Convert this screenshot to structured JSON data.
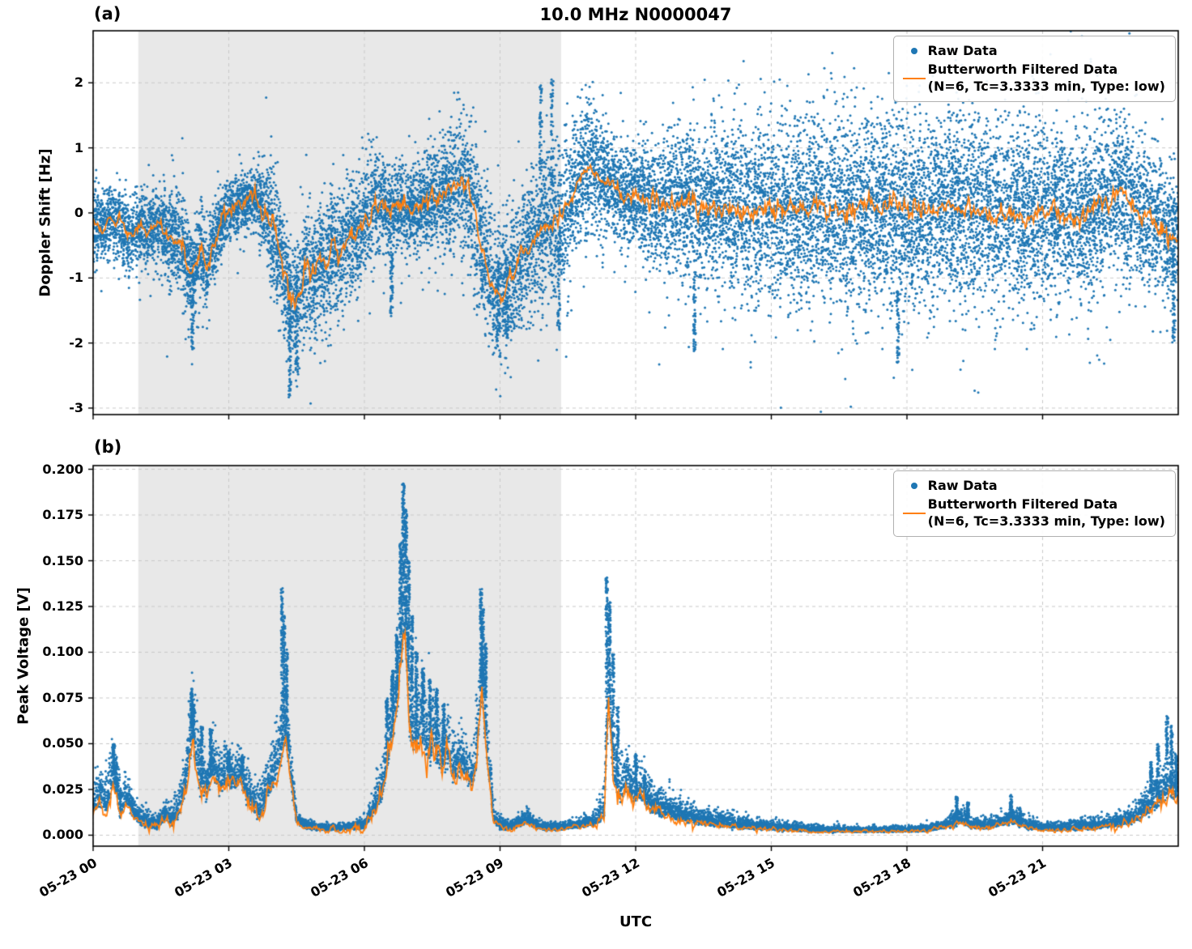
{
  "figure": {
    "title": "10.0 MHz N0000047",
    "xlabel": "UTC",
    "colors": {
      "raw": "#1f77b4",
      "filtered": "#ff7f0e",
      "shade": "#e8e8e8",
      "grid": "#c9c9c9",
      "spine": "#000000"
    }
  },
  "legend": {
    "raw_label": "Raw Data",
    "filtered_label_line1": "Butterworth Filtered Data",
    "filtered_label_line2": "(N=6, Tc=3.3333 min, Type: low)"
  },
  "chart_data": [
    {
      "type": "scatter",
      "panel_label": "(a)",
      "ylabel": "Doppler Shift [Hz]",
      "ylim": [
        -3.1,
        2.8
      ],
      "ytick_values": [
        -3,
        -2,
        -1,
        0,
        1,
        2
      ],
      "ytick_labels": [
        "-3",
        "-2",
        "-1",
        "0",
        "1",
        "2"
      ],
      "x_hours_lim": [
        0,
        24
      ],
      "xtick_hours": [
        0,
        3,
        6,
        9,
        12,
        15,
        18,
        21
      ],
      "xtick_labels": [
        "05-23 00",
        "05-23 03",
        "05-23 06",
        "05-23 09",
        "05-23 12",
        "05-23 15",
        "05-23 18",
        "05-23 21"
      ],
      "shaded_region_hours": [
        1.0,
        10.35
      ],
      "grid": true,
      "legend_position": "upper right",
      "scatter_model": "symmetric",
      "series": [
        {
          "name": "Raw Data",
          "kind": "scatter",
          "color": "#1f77b4",
          "density": 18000,
          "spread_x": [
            0,
            0.5,
            1,
            1.5,
            2,
            2.5,
            3,
            3.5,
            4,
            4.5,
            5,
            5.5,
            6,
            6.5,
            7,
            7.5,
            8,
            8.5,
            9,
            9.5,
            10,
            10.5,
            11,
            11.5,
            12,
            12.5,
            13,
            13.5,
            14,
            14.5,
            15,
            16,
            17,
            18,
            19,
            20,
            21,
            22,
            23,
            24
          ],
          "spread_halfwidth": [
            0.45,
            0.5,
            0.5,
            0.55,
            0.7,
            0.6,
            0.45,
            0.35,
            0.8,
            0.9,
            0.85,
            0.85,
            0.75,
            0.6,
            0.55,
            0.65,
            0.85,
            1,
            0.95,
            0.85,
            1,
            1,
            0.85,
            0.7,
            0.75,
            0.85,
            0.95,
            1.05,
            1.15,
            1.2,
            1.25,
            1.3,
            1.3,
            1.3,
            1.3,
            1.25,
            1.2,
            1.15,
            1,
            0.85
          ],
          "outlier_columns": [
            [
              2.2,
              -2.1,
              -0.6
            ],
            [
              4.35,
              -2.85,
              -1.1
            ],
            [
              4.5,
              -2.5,
              -1
            ],
            [
              6.6,
              -1.6,
              -0.6
            ],
            [
              8.95,
              -2.1,
              -0.8
            ],
            [
              9.15,
              -1.9,
              -0.7
            ],
            [
              9.9,
              0.6,
              2.0
            ],
            [
              10.15,
              0.4,
              2.05
            ],
            [
              10.3,
              -1.8,
              -0.3
            ],
            [
              13.3,
              -2.25,
              -0.8
            ],
            [
              17.8,
              -2.3,
              -1.2
            ],
            [
              23.9,
              -2.0,
              -0.6
            ]
          ]
        },
        {
          "name": "Butterworth Filtered Data (N=6, Tc=3.3333 min, Type: low)",
          "kind": "line",
          "color": "#ff7f0e",
          "x": [
            0,
            0.2,
            0.4,
            0.6,
            0.8,
            1,
            1.2,
            1.4,
            1.6,
            1.8,
            2,
            2.1,
            2.2,
            2.3,
            2.4,
            2.5,
            2.65,
            2.8,
            3,
            3.2,
            3.4,
            3.6,
            3.8,
            3.95,
            4.1,
            4.25,
            4.4,
            4.55,
            4.7,
            4.85,
            5,
            5.15,
            5.3,
            5.45,
            5.6,
            5.8,
            6,
            6.2,
            6.4,
            6.6,
            6.8,
            7,
            7.2,
            7.4,
            7.6,
            7.8,
            8,
            8.15,
            8.3,
            8.45,
            8.6,
            8.75,
            8.9,
            9.05,
            9.2,
            9.4,
            9.6,
            9.8,
            10,
            10.2,
            10.4,
            10.6,
            10.8,
            11,
            11.2,
            11.4,
            11.6,
            11.8,
            12,
            12.25,
            12.5,
            12.75,
            13,
            13.5,
            14,
            14.5,
            15,
            15.5,
            16,
            16.5,
            17,
            17.5,
            18,
            18.5,
            19,
            19.5,
            20,
            20.5,
            21,
            21.5,
            22,
            22.3,
            22.6,
            22.9,
            23.2,
            23.5,
            23.8,
            24
          ],
          "y": [
            -0.15,
            -0.25,
            -0.1,
            -0.2,
            -0.35,
            -0.25,
            -0.3,
            -0.2,
            -0.3,
            -0.35,
            -0.55,
            -0.8,
            -1,
            -0.7,
            -0.55,
            -0.9,
            -0.5,
            -0.2,
            0.05,
            0.2,
            0.15,
            0.2,
            0,
            -0.25,
            -0.6,
            -1,
            -1.45,
            -1.3,
            -0.85,
            -0.95,
            -0.7,
            -0.85,
            -0.5,
            -0.65,
            -0.35,
            -0.45,
            -0.1,
            0.15,
            0.1,
            0,
            0.15,
            0.05,
            0.1,
            0.15,
            0.25,
            0.35,
            0.45,
            0.5,
            0.35,
            0,
            -0.5,
            -0.9,
            -1.2,
            -1.3,
            -1.05,
            -0.8,
            -0.55,
            -0.4,
            -0.25,
            -0.15,
            0,
            0.25,
            0.55,
            0.7,
            0.55,
            0.5,
            0.4,
            0.25,
            0.3,
            0.15,
            0.2,
            0.1,
            0.15,
            0.05,
            0.1,
            0,
            0.08,
            0.03,
            0.1,
            0,
            0.05,
            0.1,
            0,
            0.05,
            0.12,
            0.02,
            0,
            -0.05,
            0.02,
            -0.08,
            0,
            0.15,
            0.35,
            0.2,
            -0.05,
            -0.15,
            -0.3,
            -0.45
          ],
          "wiggle_x": [
            0,
            2,
            4,
            6,
            8,
            10,
            11,
            12,
            13,
            24
          ],
          "wiggle_amp": [
            0.05,
            0.07,
            0.1,
            0.08,
            0.07,
            0.06,
            0.05,
            0.07,
            0.09,
            0.09
          ]
        }
      ]
    },
    {
      "type": "scatter",
      "panel_label": "(b)",
      "ylabel": "Peak Voltage [V]",
      "ylim": [
        -0.006,
        0.202
      ],
      "ytick_values": [
        0,
        0.025,
        0.05,
        0.075,
        0.1,
        0.125,
        0.15,
        0.175,
        0.2
      ],
      "ytick_labels": [
        "0.000",
        "0.025",
        "0.050",
        "0.075",
        "0.100",
        "0.125",
        "0.150",
        "0.175",
        "0.200"
      ],
      "x_hours_lim": [
        0,
        24
      ],
      "xtick_hours": [
        0,
        3,
        6,
        9,
        12,
        15,
        18,
        21
      ],
      "xtick_labels": [
        "05-23 00",
        "05-23 03",
        "05-23 06",
        "05-23 09",
        "05-23 12",
        "05-23 15",
        "05-23 18",
        "05-23 21"
      ],
      "shaded_region_hours": [
        1.0,
        10.35
      ],
      "grid": true,
      "legend_position": "upper right",
      "scatter_model": "positive_spikes",
      "clamp_min_y": 0.0012,
      "series": [
        {
          "name": "Raw Data",
          "kind": "scatter",
          "color": "#1f77b4",
          "density": 12000,
          "spread_x": [
            0,
            0.45,
            0.9,
            1.3,
            1.7,
            2.05,
            2.2,
            2.5,
            2.8,
            3.1,
            3.5,
            3.9,
            4.2,
            4.5,
            5,
            5.5,
            6,
            6.4,
            6.7,
            6.9,
            7.2,
            7.6,
            8,
            8.4,
            8.65,
            8.9,
            9.2,
            9.6,
            10,
            10.5,
            11,
            11.3,
            11.45,
            11.8,
            12.1,
            12.5,
            13,
            13.5,
            14,
            14.5,
            15,
            16,
            17,
            18,
            18.8,
            19.1,
            19.5,
            20,
            20.4,
            21,
            21.5,
            22,
            22.5,
            23,
            23.5,
            24
          ],
          "spread_halfwidth": [
            0.008,
            0.014,
            0.006,
            0.004,
            0.005,
            0.012,
            0.02,
            0.012,
            0.012,
            0.012,
            0.009,
            0.012,
            0.02,
            0.003,
            0.0018,
            0.0018,
            0.003,
            0.01,
            0.02,
            0.028,
            0.02,
            0.016,
            0.014,
            0.012,
            0.02,
            0.004,
            0.0025,
            0.004,
            0.002,
            0.002,
            0.003,
            0.008,
            0.02,
            0.012,
            0.01,
            0.008,
            0.006,
            0.005,
            0.004,
            0.003,
            0.0025,
            0.0018,
            0.0015,
            0.0015,
            0.002,
            0.005,
            0.003,
            0.003,
            0.005,
            0.002,
            0.0025,
            0.003,
            0.003,
            0.005,
            0.01,
            0.012
          ],
          "spikes": [
            [
              0.45,
              0.05
            ],
            [
              0.5,
              0.042
            ],
            [
              2.18,
              0.08
            ],
            [
              2.22,
              0.072
            ],
            [
              2.4,
              0.06
            ],
            [
              2.6,
              0.058
            ],
            [
              3,
              0.046
            ],
            [
              3.3,
              0.043
            ],
            [
              4.18,
              0.135
            ],
            [
              4.22,
              0.12
            ],
            [
              4.28,
              0.1
            ],
            [
              6.5,
              0.075
            ],
            [
              6.62,
              0.09
            ],
            [
              6.72,
              0.11
            ],
            [
              6.8,
              0.16
            ],
            [
              6.86,
              0.193
            ],
            [
              6.92,
              0.178
            ],
            [
              6.98,
              0.15
            ],
            [
              7.05,
              0.12
            ],
            [
              7.15,
              0.1
            ],
            [
              7.3,
              0.092
            ],
            [
              7.45,
              0.085
            ],
            [
              7.6,
              0.08
            ],
            [
              7.75,
              0.072
            ],
            [
              8.58,
              0.135
            ],
            [
              8.62,
              0.125
            ],
            [
              8.68,
              0.105
            ],
            [
              11.36,
              0.141
            ],
            [
              11.42,
              0.128
            ],
            [
              11.5,
              0.1
            ],
            [
              11.6,
              0.07
            ],
            [
              12,
              0.045
            ],
            [
              12.2,
              0.035
            ],
            [
              19.1,
              0.021
            ],
            [
              19.35,
              0.018
            ],
            [
              20.3,
              0.022
            ],
            [
              20.5,
              0.015
            ],
            [
              23.4,
              0.04
            ],
            [
              23.55,
              0.05
            ],
            [
              23.75,
              0.065
            ],
            [
              23.85,
              0.06
            ],
            [
              23.95,
              0.045
            ]
          ]
        },
        {
          "name": "Butterworth Filtered Data (N=6, Tc=3.3333 min, Type: low)",
          "kind": "line",
          "color": "#ff7f0e",
          "x": [
            0,
            0.15,
            0.3,
            0.45,
            0.6,
            0.75,
            0.9,
            1.05,
            1.2,
            1.4,
            1.6,
            1.75,
            1.9,
            2.05,
            2.2,
            2.35,
            2.5,
            2.65,
            2.8,
            2.95,
            3.1,
            3.25,
            3.4,
            3.55,
            3.7,
            3.85,
            4,
            4.15,
            4.25,
            4.35,
            4.5,
            4.7,
            5,
            5.5,
            6,
            6.2,
            6.4,
            6.55,
            6.7,
            6.8,
            6.9,
            7,
            7.1,
            7.25,
            7.4,
            7.55,
            7.7,
            7.85,
            8,
            8.15,
            8.3,
            8.45,
            8.6,
            8.7,
            8.85,
            9,
            9.2,
            9.4,
            9.6,
            9.8,
            10,
            10.3,
            10.6,
            10.9,
            11.1,
            11.3,
            11.4,
            11.5,
            11.65,
            11.8,
            11.95,
            12.1,
            12.3,
            12.5,
            12.75,
            13,
            13.3,
            13.6,
            14,
            14.4,
            14.8,
            15.2,
            15.6,
            16,
            16.5,
            17,
            17.5,
            18,
            18.5,
            19,
            19.2,
            19.4,
            19.7,
            20,
            20.3,
            20.6,
            21,
            21.4,
            21.8,
            22.2,
            22.6,
            23,
            23.3,
            23.6,
            23.8,
            24
          ],
          "y": [
            0.012,
            0.018,
            0.012,
            0.028,
            0.012,
            0.018,
            0.01,
            0.006,
            0.005,
            0.004,
            0.009,
            0.006,
            0.012,
            0.025,
            0.053,
            0.028,
            0.02,
            0.035,
            0.024,
            0.03,
            0.024,
            0.03,
            0.02,
            0.014,
            0.01,
            0.02,
            0.028,
            0.04,
            0.055,
            0.035,
            0.007,
            0.004,
            0.003,
            0.003,
            0.004,
            0.012,
            0.022,
            0.045,
            0.065,
            0.09,
            0.117,
            0.055,
            0.048,
            0.055,
            0.04,
            0.047,
            0.035,
            0.04,
            0.03,
            0.036,
            0.028,
            0.033,
            0.078,
            0.045,
            0.008,
            0.004,
            0.003,
            0.005,
            0.007,
            0.004,
            0.003,
            0.003,
            0.004,
            0.005,
            0.006,
            0.01,
            0.075,
            0.032,
            0.02,
            0.026,
            0.018,
            0.022,
            0.014,
            0.012,
            0.01,
            0.009,
            0.007,
            0.006,
            0.005,
            0.004,
            0.0035,
            0.003,
            0.0025,
            0.002,
            0.002,
            0.002,
            0.002,
            0.002,
            0.0025,
            0.005,
            0.007,
            0.004,
            0.004,
            0.005,
            0.007,
            0.004,
            0.003,
            0.003,
            0.0035,
            0.004,
            0.005,
            0.007,
            0.012,
            0.018,
            0.022,
            0.02
          ],
          "wiggle_x": [
            0,
            1,
            2,
            3,
            4,
            4.6,
            6,
            6.9,
            8,
            9,
            10,
            11,
            11.5,
            12,
            13,
            14,
            16,
            18,
            19,
            20,
            21,
            22,
            23,
            24
          ],
          "wiggle_amp": [
            0.002,
            0.0012,
            0.003,
            0.003,
            0.004,
            0.0006,
            0.002,
            0.006,
            0.004,
            0.001,
            0.0006,
            0.001,
            0.004,
            0.003,
            0.0015,
            0.001,
            0.0005,
            0.0005,
            0.001,
            0.001,
            0.0006,
            0.0008,
            0.0015,
            0.003
          ]
        }
      ]
    }
  ]
}
